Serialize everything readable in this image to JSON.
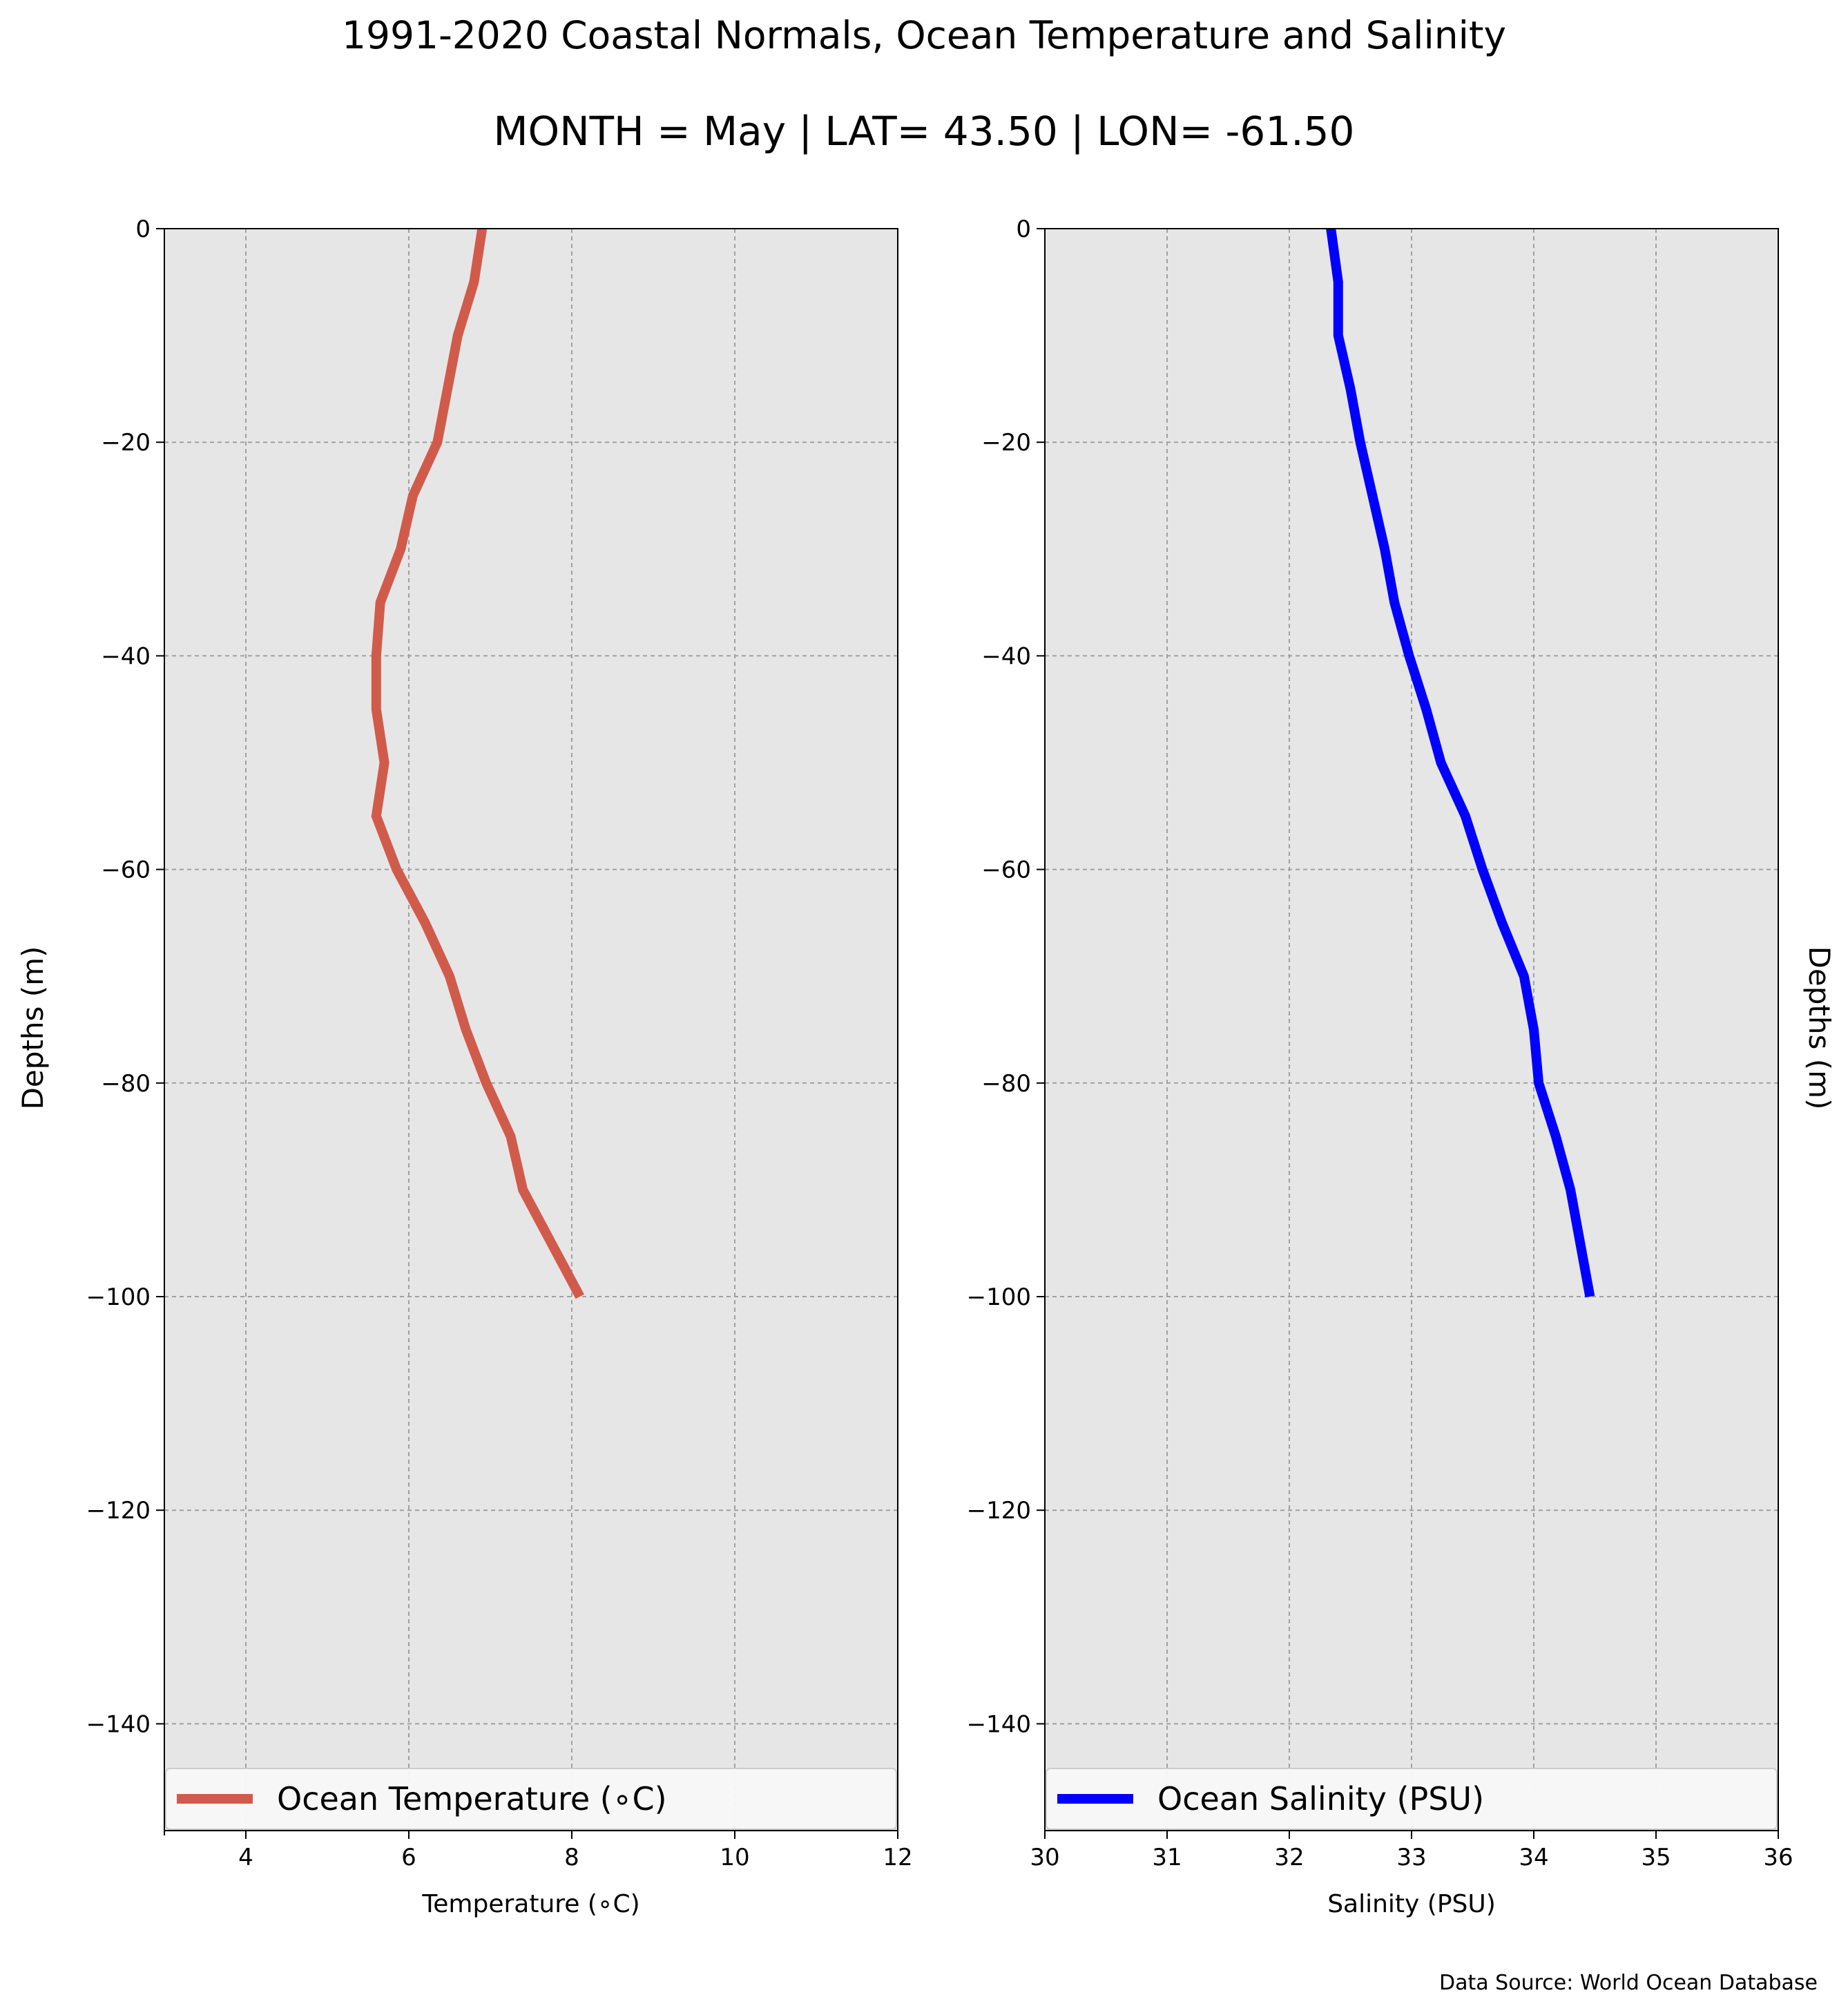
{
  "figure": {
    "title": "1991-2020 Coastal Normals, Ocean Temperature and Salinity",
    "subtitle": "MONTH = May | LAT= 43.50 | LON= -61.50",
    "source": "Data Source: World Ocean Database"
  },
  "chart_data": [
    {
      "type": "line",
      "orientation": "vertical-profile",
      "xlabel": "Temperature ($^\\circ$C)",
      "xlabel_display": "Temperature (∘C)",
      "ylabel": "Depths (m)",
      "xlim": [
        3,
        12
      ],
      "ylim": [
        -150,
        0
      ],
      "xticks": [
        4,
        6,
        8,
        10,
        12
      ],
      "yticks": [
        0,
        -20,
        -40,
        -60,
        -80,
        -100,
        -120,
        -140
      ],
      "ytick_labels": [
        "0",
        "−20",
        "−40",
        "−60",
        "−80",
        "−100",
        "−120",
        "−140"
      ],
      "grid": true,
      "legend": "bottom",
      "background": "#e6e6e6",
      "series": [
        {
          "name": "Ocean Temperature (∘C)",
          "color": "#d15b4b",
          "x": [
            6.9,
            6.8,
            6.6,
            6.35,
            6.05,
            5.9,
            5.65,
            5.6,
            5.6,
            5.7,
            5.6,
            5.85,
            6.2,
            6.5,
            6.7,
            6.95,
            7.25,
            7.4,
            7.75,
            8.1
          ],
          "y": [
            0,
            -5,
            -10,
            -20,
            -25,
            -30,
            -35,
            -40,
            -45,
            -50,
            -55,
            -60,
            -65,
            -70,
            -75,
            -80,
            -85,
            -90,
            -95,
            -100
          ]
        }
      ]
    },
    {
      "type": "line",
      "orientation": "vertical-profile",
      "xlabel": "Salinity (PSU)",
      "ylabel": "Depths (m)",
      "xlim": [
        30,
        36
      ],
      "ylim": [
        -150,
        0
      ],
      "xticks": [
        30,
        31,
        32,
        33,
        34,
        35,
        36
      ],
      "yticks": [
        0,
        -20,
        -40,
        -60,
        -80,
        -100,
        -120,
        -140
      ],
      "ytick_labels": [
        "0",
        "−20",
        "−40",
        "−60",
        "−80",
        "−100",
        "−120",
        "−140"
      ],
      "grid": true,
      "legend": "bottom",
      "background": "#e6e6e6",
      "series": [
        {
          "name": "Ocean Salinity (PSU)",
          "color": "#0000ff",
          "x": [
            32.34,
            32.4,
            32.4,
            32.5,
            32.58,
            32.68,
            32.78,
            32.86,
            32.98,
            33.12,
            33.24,
            33.44,
            33.58,
            33.74,
            33.92,
            34.0,
            34.04,
            34.18,
            34.3,
            34.46
          ],
          "y": [
            0,
            -5,
            -10,
            -15,
            -20,
            -25,
            -30,
            -35,
            -40,
            -45,
            -50,
            -55,
            -60,
            -65,
            -70,
            -75,
            -80,
            -85,
            -90,
            -100
          ]
        }
      ]
    }
  ]
}
